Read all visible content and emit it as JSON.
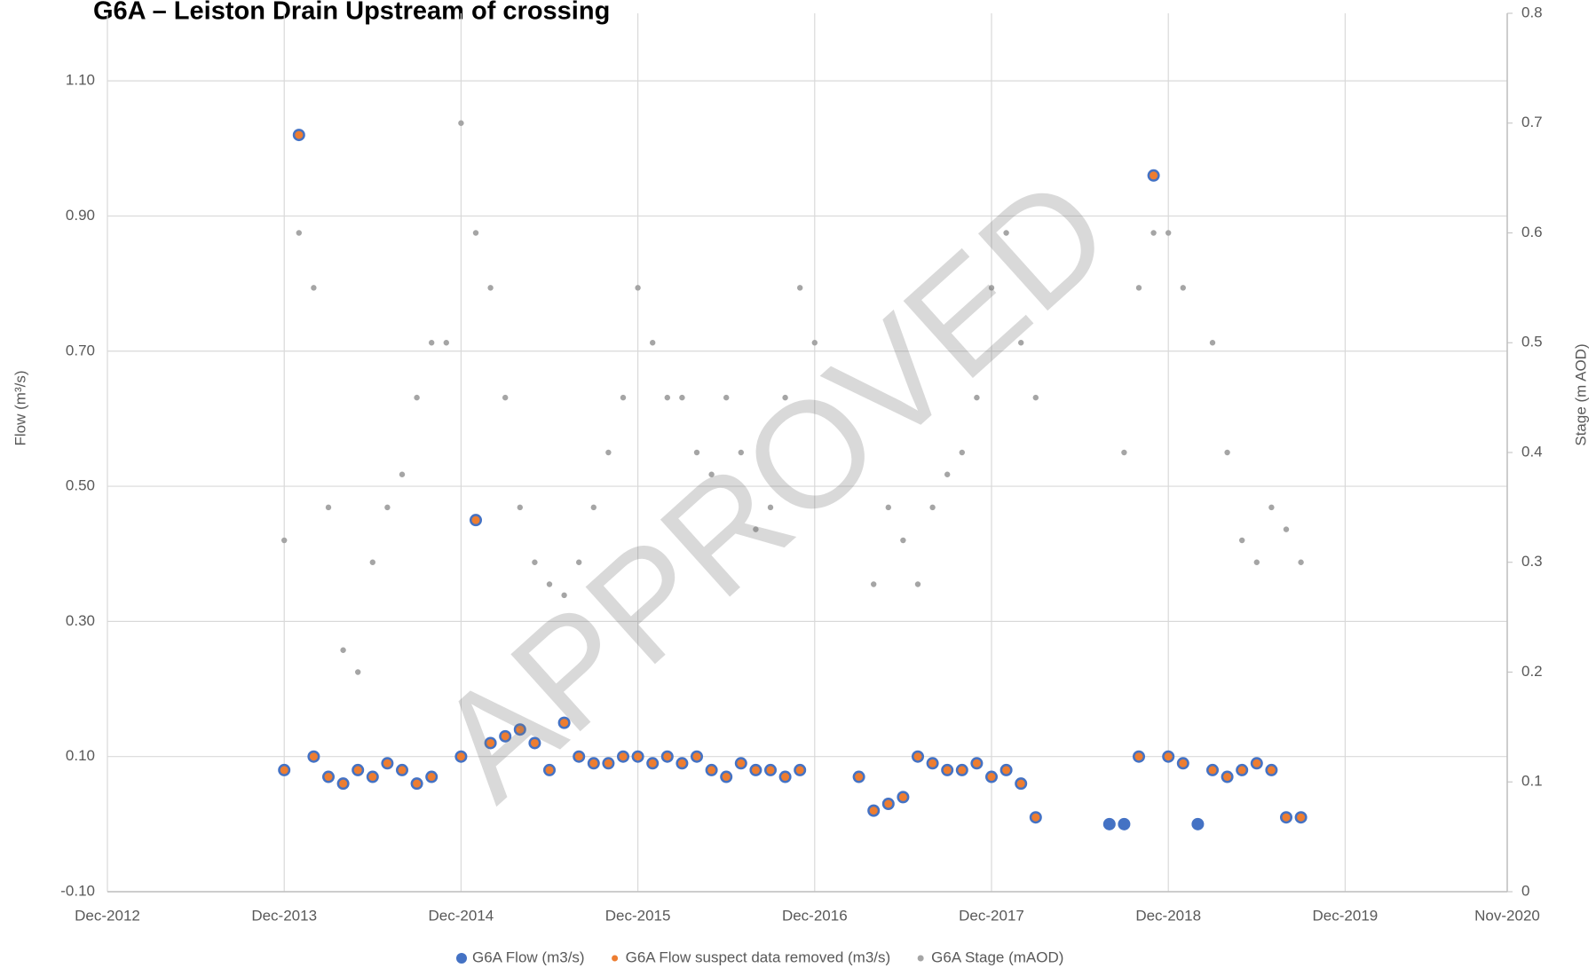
{
  "chart_data": {
    "type": "scatter",
    "title": "G6A – Leiston Drain Upstream of crossing",
    "watermark": "APPROVED",
    "y_label": "Flow (m³/s)",
    "y2_label": "Stage (m AOD)",
    "xlim": [
      "Dec-2012",
      "Nov-2020"
    ],
    "xticks": [
      "Dec-2012",
      "Dec-2013",
      "Dec-2014",
      "Dec-2015",
      "Dec-2016",
      "Dec-2017",
      "Dec-2018",
      "Dec-2019",
      "Nov-2020"
    ],
    "ylim": [
      -0.1,
      1.2
    ],
    "yticks": [
      {
        "value": -0.1,
        "label": "-0.10"
      },
      {
        "value": 0.1,
        "label": "0.10"
      },
      {
        "value": 0.3,
        "label": "0.30"
      },
      {
        "value": 0.5,
        "label": "0.50"
      },
      {
        "value": 0.7,
        "label": "0.70"
      },
      {
        "value": 0.9,
        "label": "0.90"
      },
      {
        "value": 1.1,
        "label": "1.10"
      }
    ],
    "y2lim": [
      0,
      0.8
    ],
    "y2ticks": [
      0,
      0.1,
      0.2,
      0.3,
      0.4,
      0.5,
      0.6,
      0.7,
      0.8
    ],
    "grid": true,
    "legend": "bottom",
    "x": [
      "Dec-2013",
      "Jan-2014",
      "Feb-2014",
      "Mar-2014",
      "Apr-2014",
      "May-2014",
      "Jun-2014",
      "Jul-2014",
      "Aug-2014",
      "Sep-2014",
      "Oct-2014",
      "Nov-2014",
      "Dec-2014",
      "Jan-2015",
      "Feb-2015",
      "Mar-2015",
      "Apr-2015",
      "May-2015",
      "Jun-2015",
      "Jul-2015",
      "Aug-2015",
      "Sep-2015",
      "Oct-2015",
      "Nov-2015",
      "Dec-2015",
      "Jan-2016",
      "Feb-2016",
      "Mar-2016",
      "Apr-2016",
      "May-2016",
      "Jun-2016",
      "Jul-2016",
      "Aug-2016",
      "Sep-2016",
      "Oct-2016",
      "Nov-2016",
      "Dec-2016",
      "Jan-2017",
      "Feb-2017",
      "Mar-2017",
      "Apr-2017",
      "May-2017",
      "Jun-2017",
      "Jul-2017",
      "Aug-2017",
      "Sep-2017",
      "Oct-2017",
      "Nov-2017",
      "Dec-2017",
      "Jan-2018",
      "Feb-2018",
      "Mar-2018",
      "Apr-2018",
      "May-2018",
      "Jun-2018",
      "Jul-2018",
      "Aug-2018",
      "Sep-2018",
      "Oct-2018",
      "Nov-2018",
      "Dec-2018",
      "Jan-2019",
      "Feb-2019",
      "Mar-2019",
      "Apr-2019",
      "May-2019",
      "Jun-2019",
      "Jul-2019",
      "Aug-2019",
      "Sep-2019"
    ],
    "series": [
      {
        "name": "G6A Flow (m3/s)",
        "color": "#4472c4",
        "axis": "y",
        "values": [
          0.08,
          1.02,
          0.1,
          0.07,
          0.06,
          0.08,
          0.07,
          0.09,
          0.08,
          0.06,
          0.07,
          null,
          0.1,
          0.45,
          0.12,
          0.13,
          0.14,
          0.12,
          0.08,
          0.15,
          0.1,
          0.09,
          0.09,
          0.1,
          0.1,
          0.09,
          0.1,
          0.09,
          0.1,
          0.08,
          0.07,
          0.09,
          0.08,
          0.08,
          0.07,
          0.08,
          null,
          null,
          null,
          0.07,
          0.02,
          0.03,
          0.04,
          0.1,
          0.09,
          0.08,
          0.08,
          0.09,
          0.07,
          0.08,
          0.06,
          0.01,
          null,
          null,
          null,
          null,
          0,
          0,
          0.1,
          0.96,
          0.1,
          0.09,
          0,
          0.08,
          0.07,
          0.08,
          0.09,
          0.08,
          0.01,
          0.01
        ]
      },
      {
        "name": "G6A Flow suspect data removed (m3/s)",
        "color": "#ed7d31",
        "axis": "y",
        "values": [
          0.08,
          1.02,
          0.1,
          0.07,
          0.06,
          0.08,
          0.07,
          0.09,
          0.08,
          0.06,
          0.07,
          null,
          0.1,
          0.45,
          0.12,
          0.13,
          0.14,
          0.12,
          0.08,
          0.15,
          0.1,
          0.09,
          0.09,
          0.1,
          0.1,
          0.09,
          0.1,
          0.09,
          0.1,
          0.08,
          0.07,
          0.09,
          0.08,
          0.08,
          0.07,
          0.08,
          null,
          null,
          null,
          0.07,
          0.02,
          0.03,
          0.04,
          0.1,
          0.09,
          0.08,
          0.08,
          0.09,
          0.07,
          0.08,
          0.06,
          0.01,
          null,
          null,
          null,
          null,
          null,
          null,
          0.1,
          0.96,
          0.1,
          0.09,
          null,
          0.08,
          0.07,
          0.08,
          0.09,
          0.08,
          0.01,
          0.01
        ]
      },
      {
        "name": "G6A Stage (mAOD)",
        "color": "#a5a5a5",
        "axis": "y2",
        "values": [
          0.32,
          0.6,
          0.55,
          0.35,
          0.22,
          0.2,
          0.3,
          0.35,
          0.38,
          0.45,
          0.5,
          0.5,
          0.7,
          0.6,
          0.55,
          0.45,
          0.35,
          0.3,
          0.28,
          0.27,
          0.3,
          0.35,
          0.4,
          0.45,
          0.55,
          0.5,
          0.45,
          0.45,
          0.4,
          0.38,
          0.45,
          0.4,
          0.33,
          0.35,
          0.45,
          0.55,
          0.5,
          null,
          null,
          null,
          0.28,
          0.35,
          0.32,
          0.28,
          0.35,
          0.38,
          0.4,
          0.45,
          0.55,
          0.6,
          0.5,
          0.45,
          null,
          null,
          null,
          null,
          null,
          0.4,
          0.55,
          0.6,
          0.6,
          0.55,
          null,
          0.5,
          0.4,
          0.32,
          0.3,
          0.35,
          0.33,
          0.3
        ]
      }
    ]
  }
}
